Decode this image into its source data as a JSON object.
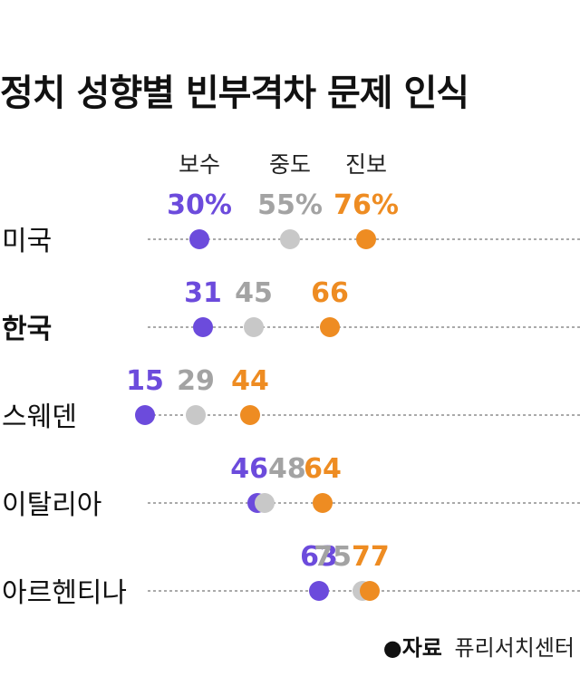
{
  "title": "정치 성향별 빈부격차 문제 인식",
  "source": {
    "label": "●자료",
    "name": "퓨리서치센터"
  },
  "colors": {
    "conservative": "#6c4bdc",
    "moderate": "#c8c8c8",
    "progressive": "#ee8c22",
    "moderate_text": "#a3a3a3"
  },
  "chart_data": {
    "type": "scatter",
    "title": "정치 성향별 빈부격차 문제 인식",
    "series": [
      {
        "name": "보수",
        "values": [
          30,
          31,
          15,
          46,
          63
        ]
      },
      {
        "name": "중도",
        "values": [
          55,
          45,
          29,
          48,
          75
        ]
      },
      {
        "name": "진보",
        "values": [
          76,
          66,
          44,
          64,
          77
        ]
      }
    ],
    "categories": [
      "미국",
      "한국",
      "스웨덴",
      "이탈리아",
      "아르헨티나"
    ],
    "bold_category": "한국",
    "labels": [
      [
        "30%",
        "55%",
        "76%"
      ],
      [
        "31",
        "45",
        "66"
      ],
      [
        "15",
        "29",
        "44"
      ],
      [
        "46",
        "48",
        "64"
      ],
      [
        "63",
        "75",
        "77"
      ]
    ],
    "xlim": [
      0,
      100
    ],
    "legend_placement": "top"
  }
}
